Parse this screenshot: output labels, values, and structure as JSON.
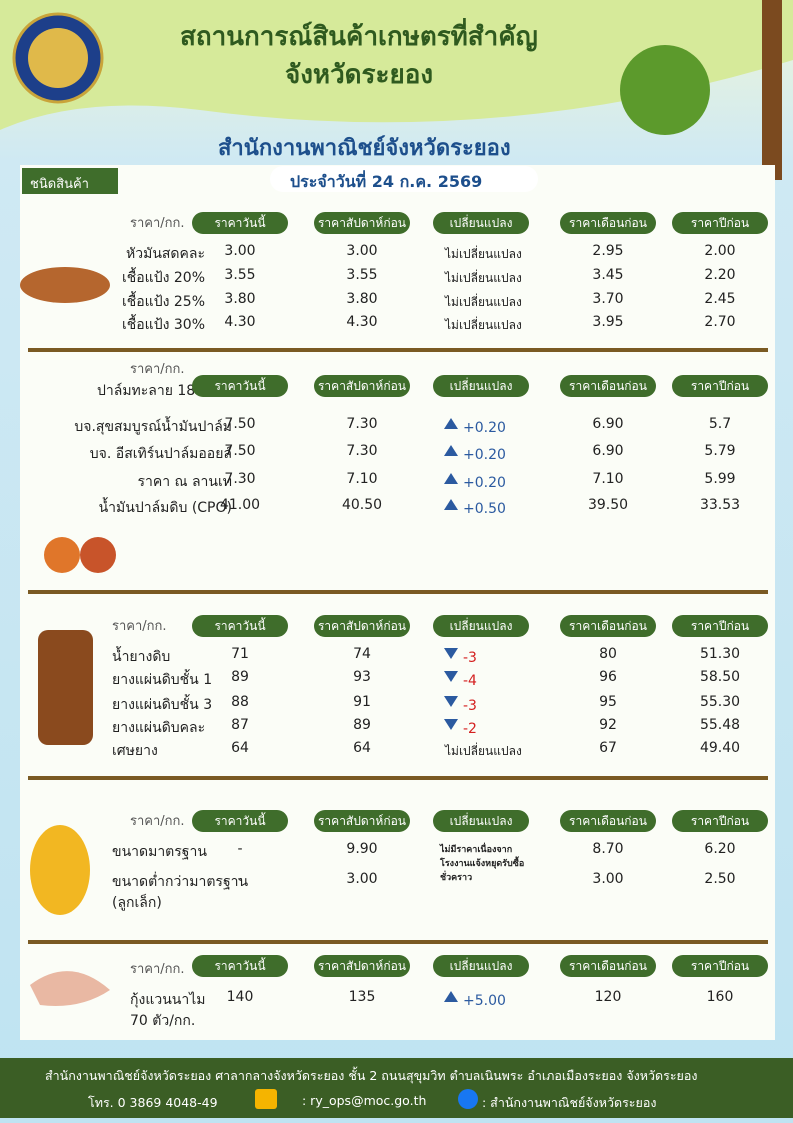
{
  "header": {
    "title_line1": "สถานการณ์สินค้าเกษตรที่สำคัญ",
    "title_line2": "จังหวัดระยอง",
    "agency": "สำนักงานพาณิชย์จังหวัดระยอง",
    "date": "ประจำวันที่ 24 ก.ค. 2569",
    "category_tab": "ชนิดสินค้า"
  },
  "columns": [
    "ราคาวันนี้",
    "ราคาสัปดาห์ก่อน",
    "เปลี่ยนแปลง",
    "ราคาเดือนก่อน",
    "ราคาปีก่อน"
  ],
  "sections": [
    {
      "unit": "ราคา/กก.",
      "rows": [
        {
          "name": "หัวมันสดคละ",
          "today": "3.00",
          "week": "3.00",
          "change": "ไม่เปลี่ยนแปลง",
          "trend": null,
          "month": "2.95",
          "year": "2.00"
        },
        {
          "name": "เชื้อแป้ง 20%",
          "today": "3.55",
          "week": "3.55",
          "change": "ไม่เปลี่ยนแปลง",
          "trend": null,
          "month": "3.45",
          "year": "2.20"
        },
        {
          "name": "เชื้อแป้ง 25%",
          "today": "3.80",
          "week": "3.80",
          "change": "ไม่เปลี่ยนแปลง",
          "trend": null,
          "month": "3.70",
          "year": "2.45"
        },
        {
          "name": "เชื้อแป้ง 30%",
          "today": "4.30",
          "week": "4.30",
          "change": "ไม่เปลี่ยนแปลง",
          "trend": null,
          "month": "3.95",
          "year": "2.70"
        }
      ]
    },
    {
      "unit": "ราคา/กก.",
      "label": "ปาล์มทะลาย 18%",
      "rows": [
        {
          "name": "บจ.สุขสมบูรณ์น้ำมันปาล์ม",
          "today": "7.50",
          "week": "7.30",
          "change": "+0.20",
          "trend": "up",
          "month": "6.90",
          "year": "5.7"
        },
        {
          "name": "บจ. อีสเทิร์นปาล์มออยล์",
          "today": "7.50",
          "week": "7.30",
          "change": "+0.20",
          "trend": "up",
          "month": "6.90",
          "year": "5.79"
        },
        {
          "name": "ราคา ณ ลานเท",
          "today": "7.30",
          "week": "7.10",
          "change": "+0.20",
          "trend": "up",
          "month": "7.10",
          "year": "5.99"
        },
        {
          "name": "น้ำมันปาล์มดิบ (CPO)",
          "today": "41.00",
          "week": "40.50",
          "change": "+0.50",
          "trend": "up",
          "month": "39.50",
          "year": "33.53"
        }
      ]
    },
    {
      "unit": "ราคา/กก.",
      "rows": [
        {
          "name": "น้ำยางดิบ",
          "today": "71",
          "week": "74",
          "change": "-3",
          "trend": "down",
          "month": "80",
          "year": "51.30"
        },
        {
          "name": "ยางแผ่นดิบชั้น 1",
          "today": "89",
          "week": "93",
          "change": "-4",
          "trend": "down",
          "month": "96",
          "year": "58.50"
        },
        {
          "name": "ยางแผ่นดิบชั้น 3",
          "today": "88",
          "week": "91",
          "change": "-3",
          "trend": "down",
          "month": "95",
          "year": "55.30"
        },
        {
          "name": "ยางแผ่นดิบคละ",
          "today": "87",
          "week": "89",
          "change": "-2",
          "trend": "down",
          "month": "92",
          "year": "55.48"
        },
        {
          "name": "เศษยาง",
          "today": "64",
          "week": "64",
          "change": "ไม่เปลี่ยนแปลง",
          "trend": null,
          "month": "67",
          "year": "49.40"
        }
      ]
    },
    {
      "unit": "ราคา/กก.",
      "note": "ไม่มีราคาเนื่องจากโรงงานแจ้งหยุดรับซื้อชั่วคราว",
      "rows": [
        {
          "name": "ขนาดมาตรฐาน",
          "today": "-",
          "week": "9.90",
          "month": "8.70",
          "year": "6.20"
        },
        {
          "name": "ขนาดต่ำกว่ามาตรฐาน",
          "name2": "(ลูกเล็ก)",
          "today": "-",
          "week": "3.00",
          "month": "3.00",
          "year": "2.50"
        }
      ]
    },
    {
      "unit": "ราคา/กก.",
      "rows": [
        {
          "name": "กุ้งแวนนาไม",
          "name2": "70 ตัว/กก.",
          "today": "140",
          "week": "135",
          "change": "+5.00",
          "trend": "up",
          "month": "120",
          "year": "160"
        }
      ]
    }
  ],
  "footer": {
    "address": "สำนักงานพาณิชย์จังหวัดระยอง ศาลากลางจังหวัดระยอง ชั้น 2 ถนนสุขุมวิท ตำบลเนินพระ อำเภอเมืองระยอง จังหวัดระยอง",
    "phone": "โทร. 0 3869 4048-49",
    "email": ": ry_ops@moc.go.th",
    "facebook": ": สำนักงานพาณิชย์จังหวัดระยอง"
  }
}
